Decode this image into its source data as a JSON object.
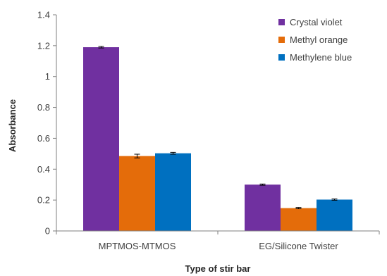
{
  "chart_data": {
    "type": "bar",
    "categories": [
      "MPTMOS-MTMOS",
      "EG/Silicone Twister"
    ],
    "series": [
      {
        "name": "Crystal violet",
        "values": [
          1.19,
          0.3
        ],
        "errors": [
          0.005,
          0.004
        ],
        "color": "#7030a0"
      },
      {
        "name": "Methyl orange",
        "values": [
          0.485,
          0.148
        ],
        "errors": [
          0.012,
          0.004
        ],
        "color": "#e46c0a"
      },
      {
        "name": "Methylene blue",
        "values": [
          0.503,
          0.203
        ],
        "errors": [
          0.006,
          0.004
        ],
        "color": "#0070c0"
      }
    ],
    "xlabel": "Type of stir bar",
    "ylabel": "Absorbance",
    "ylim": [
      0,
      1.4
    ],
    "yticks": [
      0,
      0.2,
      0.4,
      0.6,
      0.8,
      1,
      1.2,
      1.4
    ],
    "ytick_labels": [
      "0",
      "0.2",
      "0.4",
      "0.6",
      "0.8",
      "1",
      "1.2",
      "1.4"
    ],
    "grid": false,
    "legend_position": "top-right"
  }
}
